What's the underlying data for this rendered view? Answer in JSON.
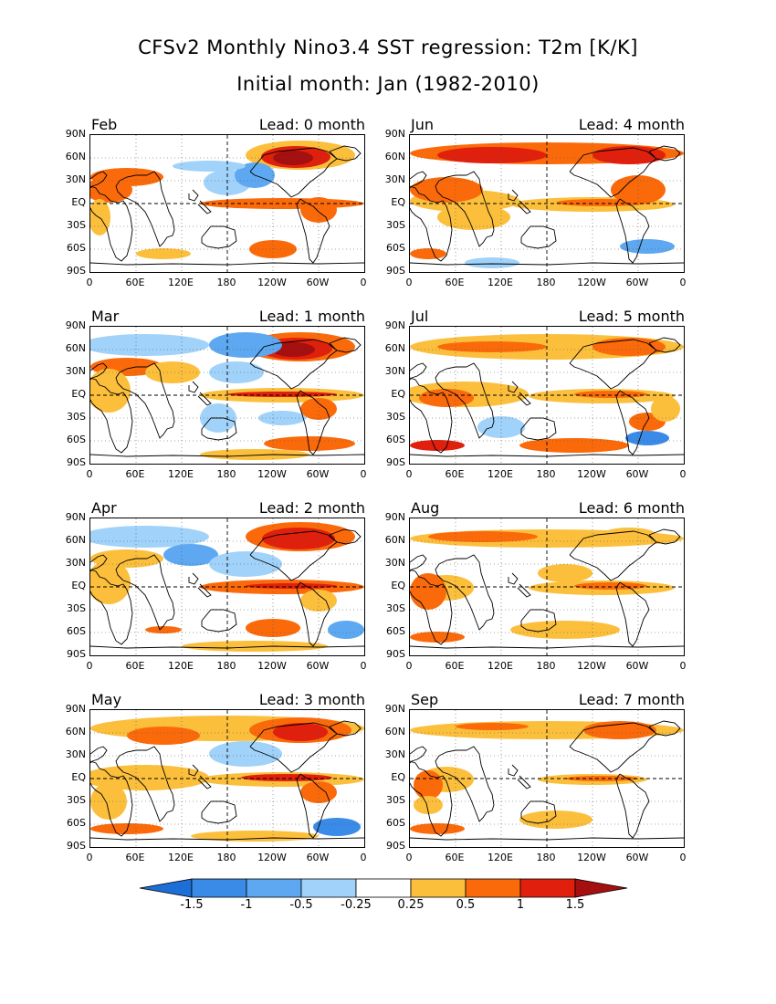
{
  "title": {
    "line1": "CFSv2 Monthly Nino3.4 SST regression: T2m [K/K]",
    "line2": "Initial month: Jan (1982-2010)"
  },
  "axes": {
    "lat_labels": [
      "90N",
      "60N",
      "30N",
      "EQ",
      "30S",
      "60S",
      "90S"
    ],
    "lon_labels": [
      "0",
      "60E",
      "120E",
      "180",
      "120W",
      "60W",
      "0"
    ]
  },
  "panels": [
    {
      "month": "Feb",
      "lead": "Lead: 0 month"
    },
    {
      "month": "Jun",
      "lead": "Lead: 4 month"
    },
    {
      "month": "Mar",
      "lead": "Lead: 1 month"
    },
    {
      "month": "Jul",
      "lead": "Lead: 5 month"
    },
    {
      "month": "Apr",
      "lead": "Lead: 2 month"
    },
    {
      "month": "Aug",
      "lead": "Lead: 6 month"
    },
    {
      "month": "May",
      "lead": "Lead: 3 month"
    },
    {
      "month": "Sep",
      "lead": "Lead: 7 month"
    }
  ],
  "colorbar": {
    "ticks": [
      "-1.5",
      "-1",
      "-0.5",
      "-0.25",
      "0.25",
      "0.5",
      "1",
      "1.5"
    ],
    "colors": [
      "#1e6ed8",
      "#3a8ae8",
      "#5da8f0",
      "#a0d2fa",
      "#ffffff",
      "#fbbf3c",
      "#fb6a0a",
      "#e0200c",
      "#a50f0f"
    ]
  }
}
